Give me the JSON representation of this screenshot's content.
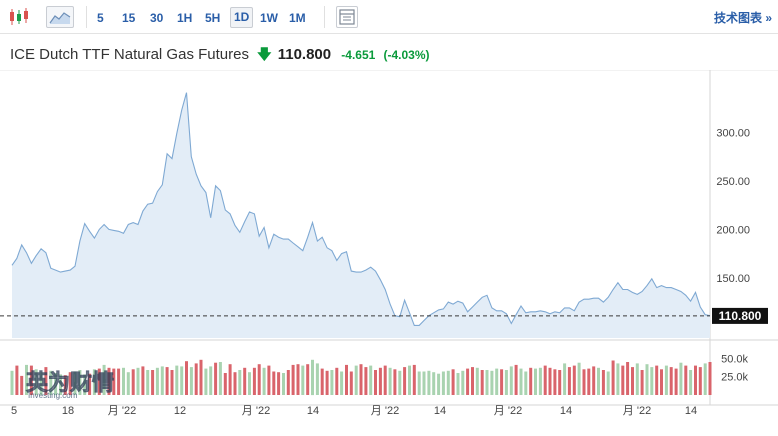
{
  "toolbar": {
    "timeframes": [
      "5",
      "15",
      "30",
      "1H",
      "5H",
      "1D",
      "1W",
      "1M"
    ],
    "active_timeframe": "1D",
    "tech_chart_link": "技术图表 »"
  },
  "quote": {
    "name": "ICE Dutch TTF Natural Gas Futures",
    "price": "110.800",
    "change": "-4.651",
    "change_pct": "(-4.03%)"
  },
  "watermark": "英为财情",
  "watermark_sub": "Investing.com",
  "colors": {
    "line": "#7fa9d3",
    "area": "#e3edf7",
    "up_volume": "#a9d3b0",
    "down_volume": "#d9646b",
    "change": "#0a9a3b",
    "link": "#2a5ea8"
  },
  "chart_data": {
    "type": "area",
    "price_axis": {
      "ticks": [
        "300.00",
        "250.00",
        "200.00",
        "150.00"
      ],
      "tick_values": [
        300,
        250,
        200,
        150
      ],
      "range": [
        88,
        352
      ]
    },
    "volume_axis": {
      "ticks": [
        "50.0k",
        "25.0k"
      ],
      "tick_values": [
        50000,
        25000
      ],
      "range": [
        0,
        64000
      ]
    },
    "last_price_label": "110.800",
    "last_price": 110.8,
    "x_tick_labels": [
      "5",
      "18",
      "月 '22",
      "12",
      "月 '22",
      "14",
      "月 '22",
      "14",
      "月 '22",
      "14",
      "月 '22",
      "14"
    ],
    "price": [
      163,
      170,
      184,
      176,
      165,
      173,
      180,
      176,
      160,
      158,
      156,
      157,
      158,
      162,
      188,
      206,
      198,
      191,
      200,
      205,
      200,
      199,
      198,
      196,
      205,
      207,
      205,
      219,
      226,
      227,
      239,
      246,
      278,
      273,
      299,
      323,
      341,
      275,
      257,
      245,
      238,
      212,
      245,
      240,
      220,
      216,
      204,
      197,
      208,
      218,
      216,
      193,
      202,
      181,
      195,
      192,
      190,
      190,
      186,
      182,
      178,
      192,
      207,
      188,
      192,
      181,
      178,
      168,
      175,
      177,
      157,
      156,
      156,
      158,
      161,
      157,
      148,
      138,
      123,
      111,
      110,
      127,
      114,
      101,
      101,
      106,
      111,
      114,
      117,
      118,
      125,
      123,
      126,
      124,
      115,
      120,
      125,
      130,
      132,
      119,
      116,
      116,
      113,
      103,
      112,
      121,
      114,
      115,
      115,
      116,
      115,
      113,
      115,
      114,
      119,
      119,
      116,
      125,
      128,
      128,
      129,
      129,
      125,
      130,
      138,
      145,
      138,
      138,
      135,
      133,
      136,
      142,
      149,
      140,
      142,
      140,
      140,
      138,
      136,
      132,
      126,
      135,
      120,
      112,
      111
    ],
    "volume": [
      33000,
      40000,
      26000,
      41000,
      40000,
      35000,
      31000,
      38000,
      33000,
      30000,
      28000,
      27000,
      31000,
      32000,
      34000,
      28000,
      29000,
      35000,
      36000,
      41000,
      37000,
      36000,
      36000,
      37000,
      31000,
      35000,
      37000,
      39000,
      34000,
      34000,
      37000,
      39000,
      38000,
      34000,
      40000,
      39000,
      46000,
      38000,
      43000,
      48000,
      36000,
      39000,
      44000,
      45000,
      30000,
      42000,
      31000,
      34000,
      37000,
      31000,
      37000,
      42000,
      37000,
      40000,
      32000,
      31000,
      30000,
      34000,
      41000,
      42000,
      40000,
      42000,
      48000,
      43000,
      36000,
      33000,
      34000,
      37000,
      32000,
      41000,
      32000,
      40000,
      42000,
      38000,
      40000,
      34000,
      37000,
      40000,
      37000,
      35000,
      33000,
      38000,
      40000,
      41000,
      32000,
      32000,
      33000,
      31000,
      29000,
      32000,
      33000,
      35000,
      30000,
      33000,
      36000,
      38000,
      37000,
      34000,
      34000,
      33000,
      36000,
      35000,
      34000,
      39000,
      41000,
      36000,
      32000,
      37000,
      36000,
      37000,
      40000,
      37000,
      35000,
      34000,
      43000,
      38000,
      40000,
      44000,
      35000,
      36000,
      39000,
      37000,
      34000,
      32000,
      47000,
      43000,
      40000,
      45000,
      38000,
      43000,
      34000,
      42000,
      38000,
      40000,
      35000,
      40000,
      38000,
      36000,
      44000,
      40000,
      34000,
      40000,
      38000,
      43000,
      45000
    ],
    "volume_up": [
      true,
      false,
      false,
      true,
      false,
      true,
      true,
      false,
      true,
      true,
      true,
      false,
      false,
      true,
      true,
      true,
      false,
      true,
      false,
      true,
      false,
      false,
      false,
      true,
      true,
      false,
      true,
      false,
      true,
      false,
      true,
      true,
      false,
      false,
      true,
      true,
      false,
      true,
      false,
      false,
      true,
      true,
      false,
      true,
      false,
      false,
      false,
      true,
      false,
      true,
      false,
      false,
      true,
      false,
      false,
      false,
      true,
      false,
      false,
      false,
      true,
      false,
      true,
      true,
      false,
      false,
      true,
      false,
      true,
      false,
      false,
      true,
      false,
      false,
      true,
      false,
      false,
      false,
      true,
      false,
      true,
      false,
      true,
      false,
      true,
      true,
      true,
      true,
      true,
      true,
      true,
      false,
      true,
      true,
      false,
      false,
      true,
      false,
      true,
      true,
      true,
      false,
      true,
      true,
      false,
      true,
      true,
      false,
      true,
      true,
      false,
      false,
      false,
      false,
      true,
      false,
      false,
      true,
      false,
      false,
      false,
      true,
      false,
      true,
      false,
      true,
      false,
      false,
      false,
      true,
      false,
      true,
      true,
      false,
      false,
      true,
      false,
      false,
      true,
      false,
      true,
      false,
      false,
      true,
      false
    ]
  }
}
